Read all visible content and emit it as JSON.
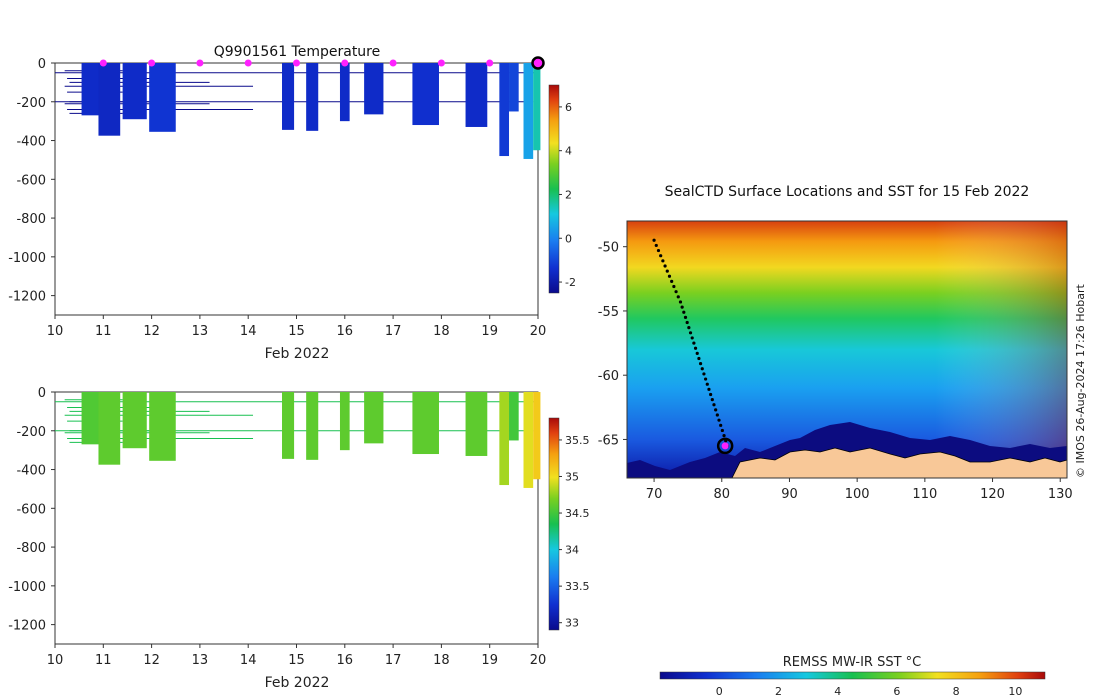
{
  "chart_data": [
    {
      "type": "heatmap",
      "title": "Q9901561  Temperature",
      "xlabel": "Feb 2022",
      "ylabel": "",
      "xlim": [
        10,
        20
      ],
      "ylim": [
        -1300,
        0
      ],
      "xticks": [
        "10",
        "11",
        "12",
        "13",
        "14",
        "15",
        "16",
        "17",
        "18",
        "19",
        "20"
      ],
      "yticks": [
        "0",
        "-200",
        "-400",
        "-600",
        "-800",
        "-1000",
        "-1200"
      ],
      "surface_markers_day": [
        11,
        12,
        13,
        14,
        15,
        16,
        17,
        18,
        19
      ],
      "current_position_day": 20,
      "colorbar": {
        "min": -2.5,
        "max": 7,
        "ticks": [
          "-2",
          "0",
          "2",
          "4",
          "6"
        ]
      },
      "profiles": [
        {
          "day": 10.55,
          "width": 0.45,
          "max_depth": -270,
          "value": -1.5
        },
        {
          "day": 10.9,
          "width": 0.45,
          "max_depth": -375,
          "value": -1.6
        },
        {
          "day": 11.4,
          "width": 0.5,
          "max_depth": -290,
          "value": -1.5
        },
        {
          "day": 11.95,
          "width": 0.55,
          "max_depth": -355,
          "value": -1.3
        },
        {
          "day": 14.7,
          "width": 0.25,
          "max_depth": -345,
          "value": -1.5
        },
        {
          "day": 15.2,
          "width": 0.25,
          "max_depth": -350,
          "value": -1.5
        },
        {
          "day": 15.9,
          "width": 0.2,
          "max_depth": -300,
          "value": -1.5
        },
        {
          "day": 16.4,
          "width": 0.4,
          "max_depth": -265,
          "value": -1.5
        },
        {
          "day": 17.4,
          "width": 0.55,
          "max_depth": -320,
          "value": -1.4
        },
        {
          "day": 18.5,
          "width": 0.45,
          "max_depth": -330,
          "value": -1.5
        },
        {
          "day": 19.2,
          "width": 0.2,
          "max_depth": -480,
          "value": -1.2
        },
        {
          "day": 19.4,
          "width": 0.2,
          "max_depth": -250,
          "value": -1.0
        },
        {
          "day": 19.7,
          "width": 0.2,
          "max_depth": -495,
          "value": 0.5
        },
        {
          "day": 19.9,
          "width": 0.15,
          "max_depth": -450,
          "value": 1.5
        }
      ]
    },
    {
      "type": "heatmap",
      "title": "",
      "xlabel": "Feb 2022",
      "ylabel": "",
      "xlim": [
        10,
        20
      ],
      "ylim": [
        -1300,
        0
      ],
      "xticks": [
        "10",
        "11",
        "12",
        "13",
        "14",
        "15",
        "16",
        "17",
        "18",
        "19",
        "20"
      ],
      "yticks": [
        "0",
        "-200",
        "-400",
        "-600",
        "-800",
        "-1000",
        "-1200"
      ],
      "colorbar": {
        "min": 32.9,
        "max": 35.8,
        "ticks": [
          "33",
          "33.5",
          "34",
          "34.5",
          "35",
          "35.5"
        ]
      },
      "profiles": [
        {
          "day": 10.55,
          "width": 0.45,
          "max_depth": -270,
          "value": 34.55
        },
        {
          "day": 10.9,
          "width": 0.45,
          "max_depth": -375,
          "value": 34.6
        },
        {
          "day": 11.4,
          "width": 0.5,
          "max_depth": -290,
          "value": 34.6
        },
        {
          "day": 11.95,
          "width": 0.55,
          "max_depth": -355,
          "value": 34.6
        },
        {
          "day": 14.7,
          "width": 0.25,
          "max_depth": -345,
          "value": 34.6
        },
        {
          "day": 15.2,
          "width": 0.25,
          "max_depth": -350,
          "value": 34.6
        },
        {
          "day": 15.9,
          "width": 0.2,
          "max_depth": -300,
          "value": 34.6
        },
        {
          "day": 16.4,
          "width": 0.4,
          "max_depth": -265,
          "value": 34.6
        },
        {
          "day": 17.4,
          "width": 0.55,
          "max_depth": -320,
          "value": 34.6
        },
        {
          "day": 18.5,
          "width": 0.45,
          "max_depth": -330,
          "value": 34.6
        },
        {
          "day": 19.2,
          "width": 0.2,
          "max_depth": -480,
          "value": 34.8
        },
        {
          "day": 19.4,
          "width": 0.2,
          "max_depth": -250,
          "value": 34.5
        },
        {
          "day": 19.7,
          "width": 0.2,
          "max_depth": -495,
          "value": 34.95
        },
        {
          "day": 19.9,
          "width": 0.15,
          "max_depth": -450,
          "value": 35.1
        }
      ]
    },
    {
      "type": "heatmap",
      "title": "SealCTD Surface Locations and SST for 15 Feb 2022",
      "xlabel": "",
      "ylabel": "",
      "xlim": [
        66,
        131
      ],
      "ylim": [
        -68,
        -48
      ],
      "xticks": [
        "70",
        "80",
        "90",
        "100",
        "110",
        "120",
        "130"
      ],
      "yticks": [
        "-50",
        "-55",
        "-60",
        "-65"
      ],
      "colorbar": {
        "label": "REMSS MW-IR SST °C",
        "min": -2,
        "max": 11,
        "ticks": [
          "0",
          "2",
          "4",
          "6",
          "8",
          "10"
        ]
      },
      "track": {
        "start": [
          70,
          -49.5
        ],
        "end": [
          80.5,
          -65.5
        ]
      },
      "credit": "© IMOS 26-Aug-2024 17:26 Hobart"
    }
  ]
}
